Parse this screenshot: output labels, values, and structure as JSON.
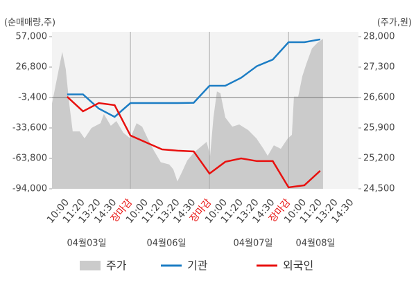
{
  "chart_data": {
    "type": "combo",
    "y_label": "(순매매량,주)",
    "y2_label": "(주가,원)",
    "categories": [
      "10:00",
      "11:20",
      "13:20",
      "14:30",
      "장마감",
      "10:00",
      "11:20",
      "13:20",
      "14:30",
      "장마감",
      "10:00",
      "11:20",
      "13:20",
      "14:30",
      "장마감",
      "10:00",
      "11:20",
      "13:20",
      "14:30"
    ],
    "dates": [
      "04월03일",
      "04월06일",
      "04월07일",
      "04월08일"
    ],
    "xlim": [
      -0.96,
      18.42
    ],
    "ylim": [
      -94000,
      57000
    ],
    "yticks": [
      {
        "value": 57000,
        "label": "57,000"
      },
      {
        "value": 26800,
        "label": "26,800"
      },
      {
        "value": -3400,
        "label": "-3,400"
      },
      {
        "value": -33600,
        "label": "-33,600"
      },
      {
        "value": -63800,
        "label": "-63,800"
      },
      {
        "value": -94000,
        "label": "-94,000"
      }
    ],
    "y2lim": [
      24500,
      28000
    ],
    "y2ticks": [
      {
        "value": 28000,
        "label": "28,000"
      },
      {
        "value": 27300,
        "label": "27,300"
      },
      {
        "value": 26600,
        "label": "26,600"
      },
      {
        "value": 25900,
        "label": "25,900"
      },
      {
        "value": 25200,
        "label": "25,200"
      },
      {
        "value": 24500,
        "label": "24,500"
      }
    ],
    "series": [
      {
        "name": "주가",
        "type": "area",
        "axis": "y2",
        "color": "#cbcbcb",
        "x": [
          -0.96,
          -0.53,
          -0.31,
          -0.09,
          0.13,
          0.35,
          0.79,
          1.1,
          1.54,
          2.11,
          2.32,
          2.76,
          3.11,
          3.55,
          3.99,
          4.39,
          4.74,
          5.09,
          5.48,
          5.92,
          6.45,
          6.71,
          6.97,
          7.24,
          7.59,
          8.03,
          8.46,
          8.82,
          9.04,
          9.25,
          9.47,
          9.69,
          10.0,
          10.44,
          10.88,
          11.45,
          11.97,
          12.41,
          12.68,
          13.07,
          13.51,
          13.95,
          14.21,
          14.34,
          14.61,
          14.87,
          15.13,
          15.48,
          15.83,
          16.18
        ],
        "values": [
          26460,
          27250,
          27650,
          27250,
          26460,
          25820,
          25820,
          25660,
          25900,
          26010,
          26220,
          25950,
          26060,
          25790,
          25660,
          26010,
          25930,
          25660,
          25380,
          25110,
          25060,
          24950,
          24670,
          24870,
          25150,
          25340,
          25470,
          25580,
          25260,
          26140,
          26740,
          26700,
          26140,
          25930,
          25980,
          25850,
          25660,
          25420,
          25260,
          25500,
          25420,
          25660,
          25740,
          26620,
          26620,
          27090,
          27380,
          27730,
          27860,
          27950
        ]
      },
      {
        "name": "기관",
        "type": "line",
        "color": "#1c7dc4",
        "x": [
          0,
          1,
          2,
          3,
          4,
          5,
          6,
          7,
          8,
          9,
          10,
          11,
          12,
          13,
          14,
          15,
          16
        ],
        "values": [
          -300,
          -300,
          -14400,
          -22600,
          -8900,
          -8900,
          -8900,
          -8900,
          -8600,
          8300,
          8300,
          16200,
          27800,
          34200,
          51500,
          51500,
          54300
        ]
      },
      {
        "name": "외국인",
        "type": "line",
        "color": "#e8110f",
        "x": [
          0,
          1,
          2,
          3,
          4,
          5,
          6,
          7,
          8,
          9,
          10,
          11,
          12,
          13,
          14,
          15,
          16
        ],
        "values": [
          -2700,
          -17100,
          -8900,
          -11000,
          -41100,
          -48000,
          -54900,
          -56200,
          -56900,
          -78900,
          -67200,
          -63800,
          -66500,
          -66500,
          -92600,
          -90500,
          -76100
        ]
      }
    ]
  }
}
